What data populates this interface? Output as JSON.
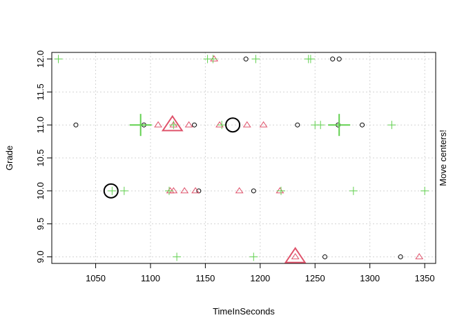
{
  "chart_data": {
    "type": "scatter",
    "title": "",
    "xlabel": "TimeInSeconds",
    "ylabel": "Grade",
    "side_label": "Move centers!",
    "xlim": [
      1010,
      1360
    ],
    "ylim": [
      8.9,
      12.1
    ],
    "x_ticks": [
      1050,
      1100,
      1150,
      1200,
      1250,
      1300,
      1350
    ],
    "y_ticks": [
      9.0,
      9.5,
      10.0,
      10.5,
      11.0,
      11.5,
      12.0
    ],
    "x_tick_labels": [
      "1050",
      "1100",
      "1150",
      "1200",
      "1250",
      "1300",
      "1350"
    ],
    "y_tick_labels": [
      "9.0",
      "9.5",
      "10.0",
      "10.5",
      "11.0",
      "11.5",
      "12.0"
    ],
    "grid": true,
    "series": [
      {
        "marker": "circle",
        "color": "#000000",
        "points": [
          {
            "x": 1032,
            "y": 11.0
          },
          {
            "x": 1094,
            "y": 11.0
          },
          {
            "x": 1140,
            "y": 11.0
          },
          {
            "x": 1234,
            "y": 11.0
          },
          {
            "x": 1271,
            "y": 11.0
          },
          {
            "x": 1293,
            "y": 11.0
          },
          {
            "x": 1187,
            "y": 12.0
          },
          {
            "x": 1266,
            "y": 12.0
          },
          {
            "x": 1272,
            "y": 12.0
          },
          {
            "x": 1144,
            "y": 10.0
          },
          {
            "x": 1194,
            "y": 10.0
          },
          {
            "x": 1259,
            "y": 9.0
          },
          {
            "x": 1328,
            "y": 9.0
          }
        ],
        "center": {
          "x": 1064,
          "y": 10.0
        }
      },
      {
        "marker": "triangle",
        "color": "#df536b",
        "points": [
          {
            "x": 1158,
            "y": 12.0
          },
          {
            "x": 1107,
            "y": 11.0
          },
          {
            "x": 1121,
            "y": 11.0
          },
          {
            "x": 1135,
            "y": 11.0
          },
          {
            "x": 1163,
            "y": 11.0
          },
          {
            "x": 1188,
            "y": 11.0
          },
          {
            "x": 1203,
            "y": 11.0
          },
          {
            "x": 1118,
            "y": 10.0
          },
          {
            "x": 1121,
            "y": 10.0
          },
          {
            "x": 1131,
            "y": 10.0
          },
          {
            "x": 1141,
            "y": 10.0
          },
          {
            "x": 1181,
            "y": 10.0
          },
          {
            "x": 1218,
            "y": 10.0
          },
          {
            "x": 1232,
            "y": 9.0
          },
          {
            "x": 1345,
            "y": 9.0
          }
        ],
        "center": {
          "x": 1120,
          "y": 11.0
        }
      },
      {
        "marker": "plus",
        "color": "#61d04f",
        "points": [
          {
            "x": 1016,
            "y": 12.0
          },
          {
            "x": 1152,
            "y": 12.0
          },
          {
            "x": 1157,
            "y": 12.0
          },
          {
            "x": 1196,
            "y": 12.0
          },
          {
            "x": 1244,
            "y": 12.0
          },
          {
            "x": 1246,
            "y": 12.0
          },
          {
            "x": 1091,
            "y": 11.0
          },
          {
            "x": 1121,
            "y": 11.0
          },
          {
            "x": 1165,
            "y": 11.0
          },
          {
            "x": 1250,
            "y": 11.0
          },
          {
            "x": 1255,
            "y": 11.0
          },
          {
            "x": 1272,
            "y": 11.0
          },
          {
            "x": 1320,
            "y": 11.0
          },
          {
            "x": 1065,
            "y": 10.0
          },
          {
            "x": 1076,
            "y": 10.0
          },
          {
            "x": 1117,
            "y": 10.0
          },
          {
            "x": 1219,
            "y": 10.0
          },
          {
            "x": 1285,
            "y": 10.0
          },
          {
            "x": 1350,
            "y": 10.0
          },
          {
            "x": 1124,
            "y": 9.0
          },
          {
            "x": 1194,
            "y": 9.0
          }
        ],
        "centers_large": [
          {
            "x": 1091,
            "y": 11.0
          },
          {
            "x": 1272,
            "y": 11.0
          }
        ]
      }
    ],
    "highlight_centers": [
      {
        "marker": "circle",
        "color": "#000000",
        "x": 1064,
        "y": 10.0
      },
      {
        "marker": "circle",
        "color": "#000000",
        "x": 1175,
        "y": 11.0
      },
      {
        "marker": "triangle",
        "color": "#df536b",
        "x": 1120,
        "y": 11.0
      },
      {
        "marker": "triangle",
        "color": "#df536b",
        "x": 1232,
        "y": 9.0
      }
    ]
  }
}
